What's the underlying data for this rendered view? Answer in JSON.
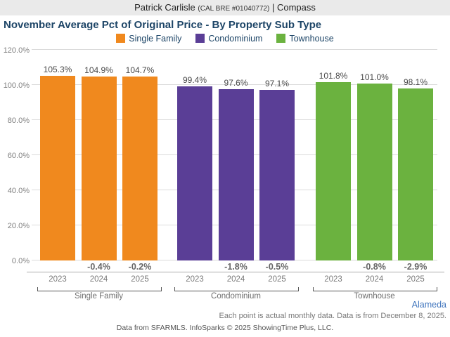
{
  "header": {
    "agent": "Patrick Carlisle",
    "license": "(CAL BRE #01040772)",
    "pipe": "|",
    "brokerage": "Compass"
  },
  "title": "November Average Pct of Original Price - By Property Sub Type",
  "chart_data": {
    "type": "bar",
    "title": "November Average Pct of Original Price - By Property Sub Type",
    "xlabel": "",
    "ylabel": "",
    "ylim": [
      0,
      120
    ],
    "yticks": [
      "0.0%",
      "20.0%",
      "40.0%",
      "60.0%",
      "80.0%",
      "100.0%",
      "120.0%"
    ],
    "grid": true,
    "legend_position": "top",
    "categories": [
      "2023",
      "2024",
      "2025"
    ],
    "series": [
      {
        "name": "Single Family",
        "color": "#F0891E",
        "values": [
          105.3,
          104.9,
          104.7
        ],
        "value_labels": [
          "105.3%",
          "104.9%",
          "104.7%"
        ],
        "change_labels": [
          "",
          "-0.4%",
          "-0.2%"
        ]
      },
      {
        "name": "Condominium",
        "color": "#5A3E96",
        "values": [
          99.4,
          97.6,
          97.1
        ],
        "value_labels": [
          "99.4%",
          "97.6%",
          "97.1%"
        ],
        "change_labels": [
          "",
          "-1.8%",
          "-0.5%"
        ]
      },
      {
        "name": "Townhouse",
        "color": "#6BB23F",
        "values": [
          101.8,
          101.0,
          98.1
        ],
        "value_labels": [
          "101.8%",
          "101.0%",
          "98.1%"
        ],
        "change_labels": [
          "",
          "-0.8%",
          "-2.9%"
        ]
      }
    ]
  },
  "footer": {
    "region_link": "Alameda",
    "note": "Each point is actual monthly data. Data is from December 8, 2025.",
    "attribution": "Data from SFARMLS. InfoSparks © 2025 ShowingTime Plus, LLC."
  }
}
